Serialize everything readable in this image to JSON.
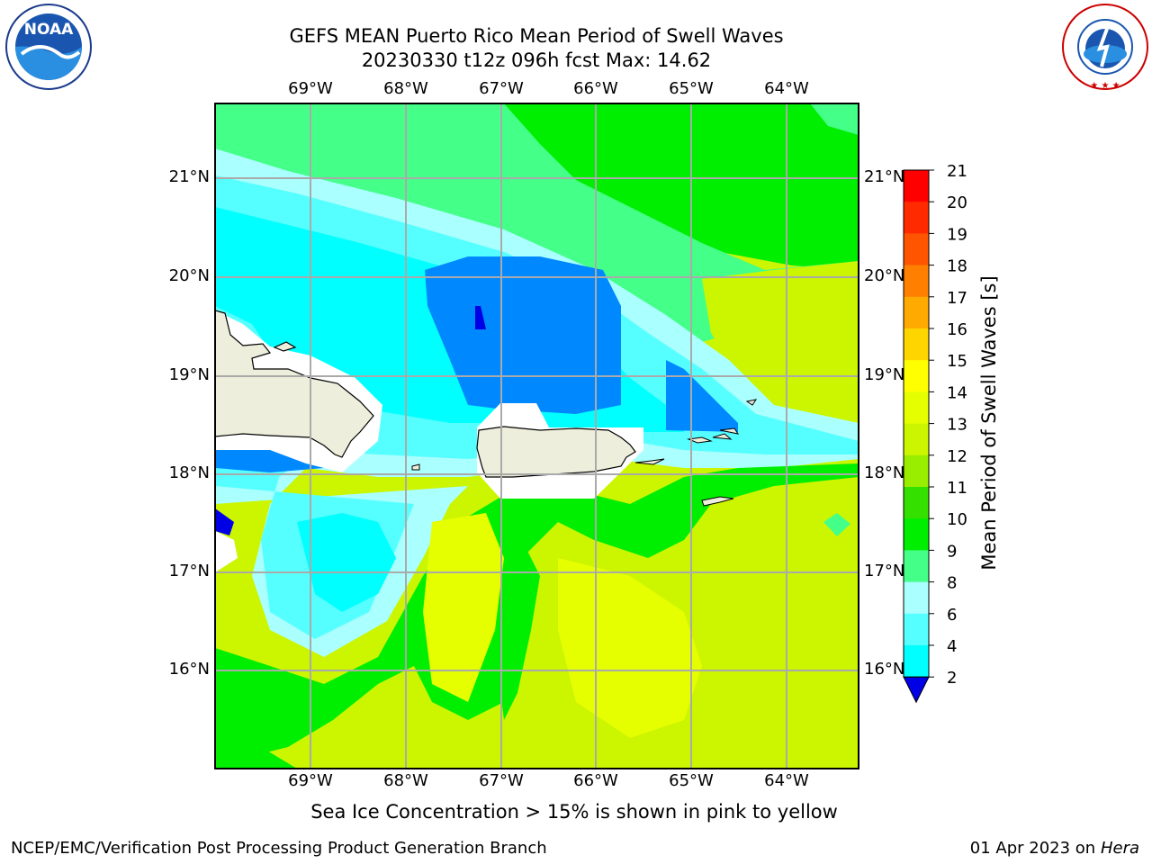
{
  "title": {
    "line1": "GEFS MEAN Puerto Rico Mean Period of Swell Waves",
    "line2": "20230330 t12z 096h fcst   Max: 14.62"
  },
  "axes": {
    "lon_labels": [
      "69°W",
      "68°W",
      "67°W",
      "66°W",
      "65°W",
      "64°W"
    ],
    "lat_labels": [
      "21°N",
      "20°N",
      "19°N",
      "18°N",
      "17°N",
      "16°N"
    ]
  },
  "colorbar": {
    "label": "Mean Period of Swell Waves [s]",
    "ticks": [
      "21",
      "20",
      "19",
      "18",
      "17",
      "16",
      "15",
      "14",
      "13",
      "12",
      "11",
      "10",
      "9",
      "8",
      "6",
      "4",
      "2"
    ],
    "colors": [
      "#ff0000",
      "#ff2a00",
      "#ff5500",
      "#ff8000",
      "#ffaa00",
      "#ffd500",
      "#ffff00",
      "#e6ff00",
      "#ccf500",
      "#99ee00",
      "#33e000",
      "#00ee00",
      "#44ff88",
      "#aaffff",
      "#55ffff",
      "#00ffff",
      "#0088ff",
      "#0000e6"
    ]
  },
  "field_colors": {
    "dark_blue": "#0000e6",
    "blue": "#0088ff",
    "cyan": "#00ffff",
    "light_cyan": "#55ffff",
    "pale_cyan": "#aaffff",
    "mint": "#44ff88",
    "green": "#00ee00",
    "yellow_green": "#ccf500",
    "yellow": "#e6ff00",
    "land": "#eeeedc"
  },
  "logos": {
    "left": "NOAA",
    "right": "NATIONAL WEATHER SERVICE"
  },
  "subtitle": "Sea Ice Concentration > 15% is shown in pink to yellow",
  "footer": {
    "left": "NCEP/EMC/Verification Post Processing Product Generation Branch",
    "date": "01 Apr 2023 on ",
    "machine": "Hera"
  }
}
